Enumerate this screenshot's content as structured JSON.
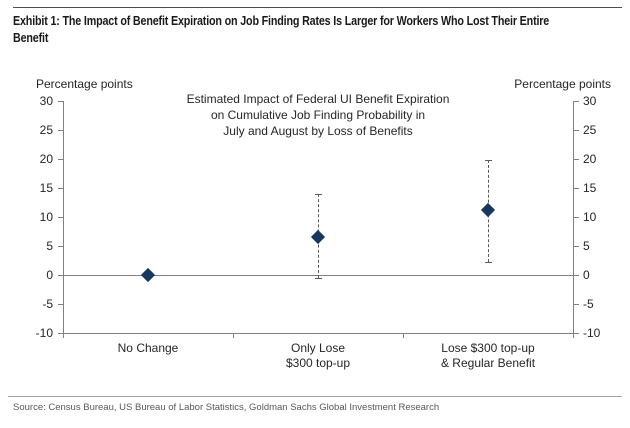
{
  "exhibit": {
    "title_line1": "Exhibit 1: The Impact of Benefit Expiration on Job Finding Rates Is Larger for Workers Who Lost Their Entire",
    "title_line2": "Benefit",
    "source": "Source: Census Bureau, US Bureau of Labor Statistics, Goldman Sachs Global Investment Research"
  },
  "axes": {
    "left_label": "Percentage points",
    "right_label": "Percentage points"
  },
  "chart_data": {
    "type": "scatter",
    "title_lines": [
      "Estimated Impact of Federal UI Benefit Expiration",
      "on Cumulative Job Finding Probability in",
      "July and August by Loss of Benefits"
    ],
    "categories": [
      [
        "No Change"
      ],
      [
        "Only Lose",
        "$300 top-up"
      ],
      [
        "Lose $300 top-up",
        "& Regular Benefit"
      ]
    ],
    "points": [
      {
        "label": "No Change",
        "value": 0.0,
        "ci_low": null,
        "ci_high": null
      },
      {
        "label": "Only Lose $300 top-up",
        "value": 6.5,
        "ci_low": -0.6,
        "ci_high": 14.0
      },
      {
        "label": "Lose $300 top-up & Regular Benefit",
        "value": 11.2,
        "ci_low": 2.3,
        "ci_high": 19.9
      }
    ],
    "ylabel_left": "Percentage points",
    "ylabel_right": "Percentage points",
    "ylim": [
      -10,
      30
    ],
    "yticks": [
      30,
      25,
      20,
      15,
      10,
      5,
      0,
      -5,
      -10
    ],
    "zero_line": true,
    "grid": false,
    "legend": "none",
    "marker": "diamond",
    "marker_color": "#17375E",
    "error_bar_color": "#595959",
    "axis_color": "#808080"
  }
}
